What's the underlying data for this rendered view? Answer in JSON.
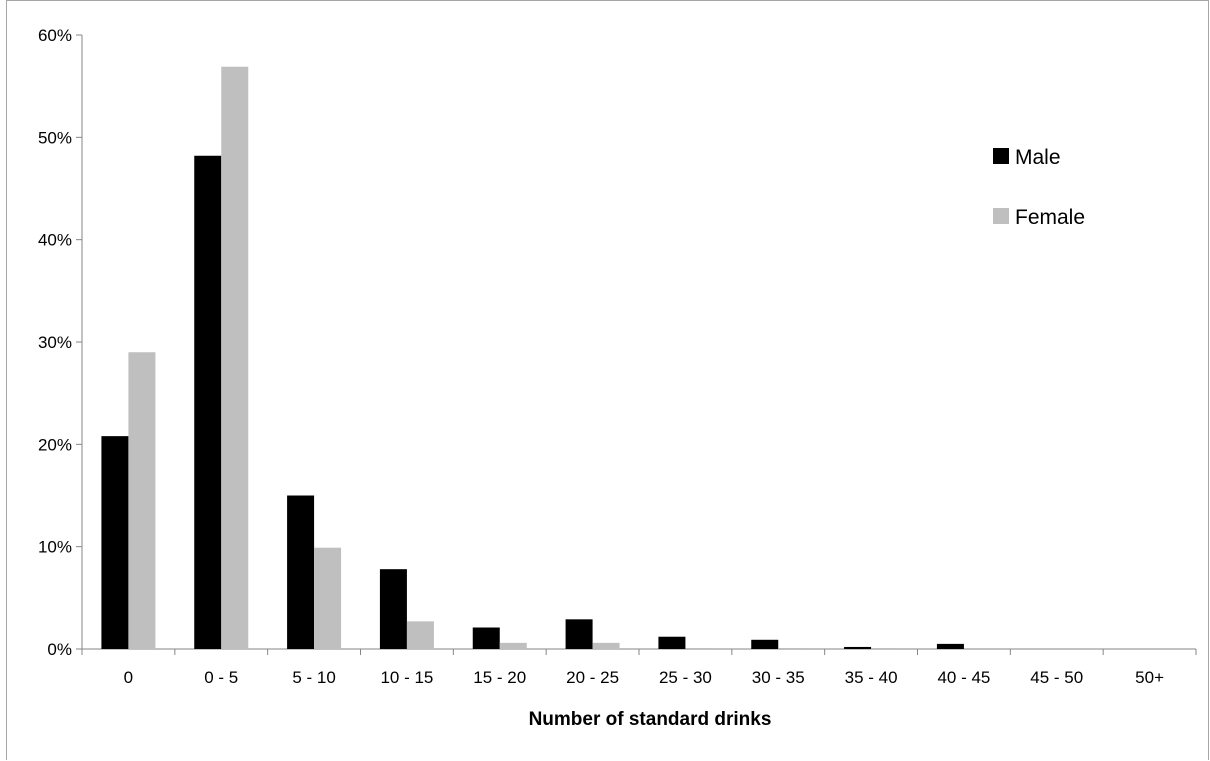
{
  "chart_data": {
    "type": "bar",
    "title": "",
    "xlabel": "Number of standard drinks",
    "ylabel": "",
    "ylim": [
      0,
      0.6
    ],
    "yticks": [
      "0%",
      "10%",
      "20%",
      "30%",
      "40%",
      "50%",
      "60%"
    ],
    "categories": [
      "0",
      "0 - 5",
      "5 - 10",
      "10 - 15",
      "15 - 20",
      "20 - 25",
      "25 - 30",
      "30 - 35",
      "35 - 40",
      "40 - 45",
      "45 - 50",
      "50+"
    ],
    "series": [
      {
        "name": "Male",
        "color": "#000000",
        "values": [
          0.208,
          0.482,
          0.15,
          0.078,
          0.021,
          0.029,
          0.012,
          0.009,
          0.002,
          0.005,
          0.0,
          0.0
        ]
      },
      {
        "name": "Female",
        "color": "#bfbfbf",
        "values": [
          0.29,
          0.569,
          0.099,
          0.027,
          0.006,
          0.006,
          0.001,
          0.001,
          0.001,
          0.0,
          0.0,
          0.0
        ]
      }
    ],
    "legend": "right",
    "grid": false
  }
}
